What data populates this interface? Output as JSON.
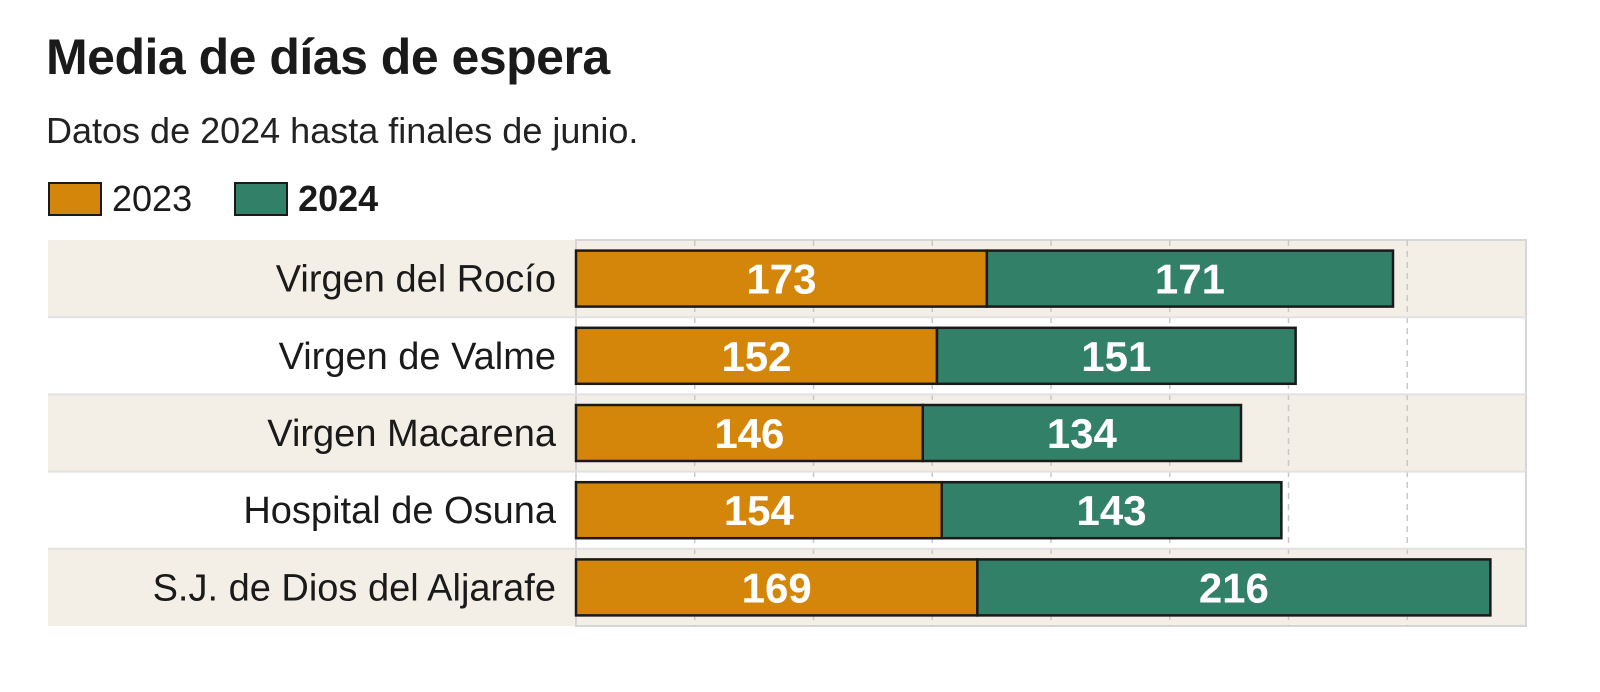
{
  "chart_data": {
    "type": "bar",
    "orientation": "horizontal",
    "stacked": true,
    "title": "Media de días de espera",
    "subtitle": "Datos de 2024 hasta finales de junio.",
    "categories": [
      "Virgen del Rocío",
      "Virgen de Valme",
      "Virgen Macarena",
      "Hospital de Osuna",
      "S.J. de Dios del Aljarafe"
    ],
    "series": [
      {
        "name": "2023",
        "color": "#d4860b",
        "values": [
          173,
          152,
          146,
          154,
          169
        ]
      },
      {
        "name": "2024",
        "color": "#338068",
        "values": [
          171,
          151,
          134,
          143,
          216
        ]
      }
    ],
    "xlim": [
      0,
      400
    ],
    "grid": true,
    "grid_step": 50,
    "legend_placement": "top-left",
    "data_labels": true
  }
}
